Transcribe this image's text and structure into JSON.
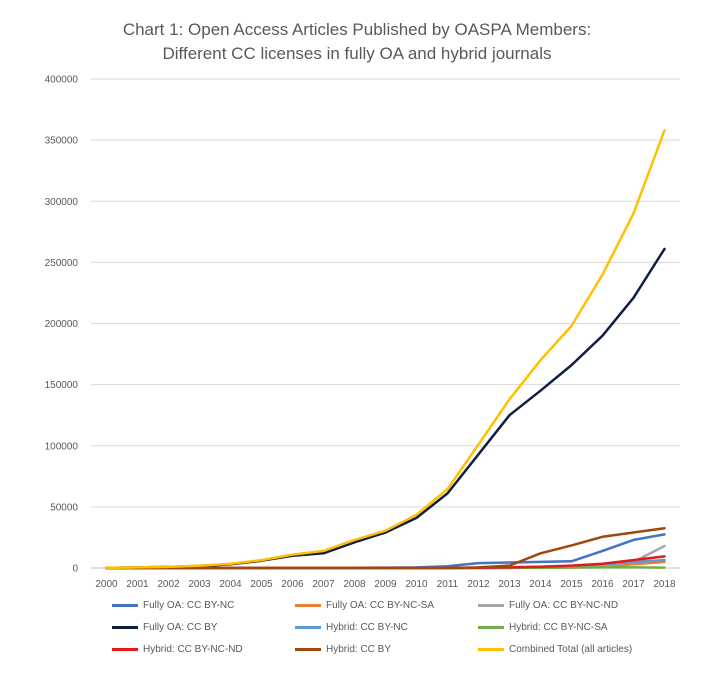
{
  "chart_data": {
    "type": "line",
    "title": [
      "Chart 1: Open Access Articles Published by OASPA Members:",
      "Different CC licenses in fully OA and hybrid journals"
    ],
    "xlabel": "",
    "ylabel": "",
    "ylim": [
      0,
      400000
    ],
    "yticks": [
      0,
      50000,
      100000,
      150000,
      200000,
      250000,
      300000,
      350000,
      400000
    ],
    "ytick_labels": [
      "0",
      "50000",
      "100000",
      "150000",
      "200000",
      "250000",
      "300000",
      "350000",
      "400000"
    ],
    "grid": true,
    "legend_position": "bottom",
    "categories": [
      "2000",
      "2001",
      "2002",
      "2003",
      "2004",
      "2005",
      "2006",
      "2007",
      "2008",
      "2009",
      "2010",
      "2011",
      "2012",
      "2013",
      "2014",
      "2015",
      "2016",
      "2017",
      "2018"
    ],
    "series": [
      {
        "name": "Fully OA: CC BY-NC",
        "color": "#4472C4",
        "values": [
          0,
          0,
          0,
          0,
          0,
          0,
          0,
          0,
          200,
          300,
          500,
          1500,
          4000,
          4500,
          5000,
          5500,
          14000,
          23000,
          27500
        ]
      },
      {
        "name": "Fully OA: CC BY-NC-SA",
        "color": "#ED7D31",
        "values": [
          0,
          0,
          0,
          0,
          0,
          0,
          0,
          0,
          0,
          0,
          0,
          0,
          100,
          200,
          300,
          500,
          1000,
          3000,
          5000
        ]
      },
      {
        "name": "Fully OA: CC BY-NC-ND",
        "color": "#A5A5A5",
        "values": [
          0,
          0,
          0,
          0,
          0,
          0,
          0,
          0,
          0,
          0,
          0,
          0,
          100,
          300,
          500,
          1000,
          2000,
          5000,
          18000
        ]
      },
      {
        "name": "Fully OA: CC BY",
        "color": "#0F1F44",
        "values": [
          100,
          500,
          900,
          1500,
          3000,
          6000,
          10000,
          12000,
          21000,
          29000,
          41000,
          61000,
          93000,
          125000,
          145000,
          166000,
          190000,
          221000,
          261000
        ]
      },
      {
        "name": "Hybrid: CC BY-NC",
        "color": "#5B9BD5",
        "values": [
          0,
          0,
          0,
          0,
          0,
          0,
          0,
          0,
          0,
          0,
          0,
          0,
          100,
          500,
          1000,
          1500,
          3000,
          5000,
          6500
        ]
      },
      {
        "name": "Hybrid: CC BY-NC-SA",
        "color": "#70AD47",
        "values": [
          0,
          0,
          0,
          0,
          0,
          0,
          0,
          0,
          0,
          0,
          0,
          0,
          0,
          100,
          200,
          300,
          500,
          500,
          300
        ]
      },
      {
        "name": "Hybrid: CC BY-NC-ND",
        "color": "#E31A1C",
        "values": [
          0,
          0,
          0,
          0,
          0,
          0,
          0,
          0,
          0,
          0,
          0,
          0,
          200,
          500,
          1000,
          2000,
          3500,
          6500,
          9500
        ]
      },
      {
        "name": "Hybrid: CC BY",
        "color": "#9E480E",
        "values": [
          0,
          0,
          0,
          0,
          0,
          0,
          0,
          0,
          0,
          0,
          0,
          0,
          500,
          2000,
          12000,
          18500,
          25500,
          29000,
          32500
        ]
      },
      {
        "name": "Combined Total (all articles)",
        "color": "#FFC000",
        "values": [
          100,
          500,
          900,
          2000,
          3500,
          6500,
          11000,
          14000,
          23000,
          30500,
          43500,
          64500,
          101000,
          138000,
          170000,
          198000,
          240000,
          290000,
          358000
        ]
      }
    ]
  }
}
